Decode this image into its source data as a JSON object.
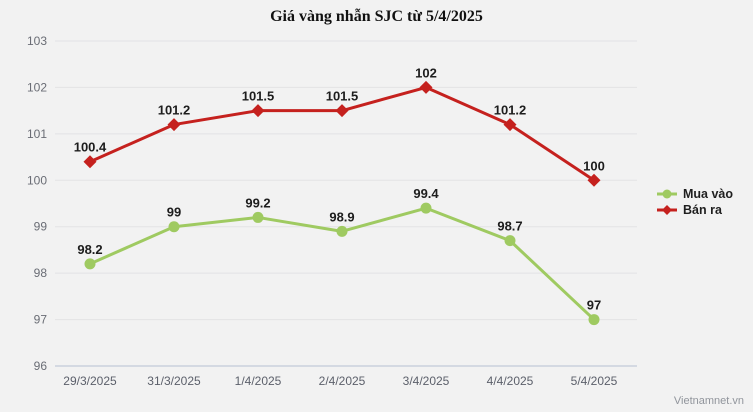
{
  "page": {
    "background": "#f2f2f2",
    "watermark": "Vietnamnet.vn"
  },
  "chart_data": {
    "type": "line",
    "title": "Giá vàng nhẫn SJC từ 5/4/2025",
    "categories": [
      "29/3/2025",
      "31/3/2025",
      "1/4/2025",
      "2/4/2025",
      "3/4/2025",
      "4/4/2025",
      "5/4/2025"
    ],
    "series": [
      {
        "name": "Mua vào",
        "color": "#9fca61",
        "marker": "circle",
        "values": [
          98.2,
          99,
          99.2,
          98.9,
          99.4,
          98.7,
          97
        ],
        "labels": [
          "98.2",
          "99",
          "99.2",
          "98.9",
          "99.4",
          "98.7",
          "97"
        ]
      },
      {
        "name": "Bán ra",
        "color": "#c5211e",
        "marker": "diamond",
        "values": [
          100.4,
          101.2,
          101.5,
          101.5,
          102,
          101.2,
          100
        ],
        "labels": [
          "100.4",
          "101.2",
          "101.5",
          "101.5",
          "102",
          "101.2",
          "100"
        ]
      }
    ],
    "xlabel": "",
    "ylabel": "",
    "ylim": [
      96,
      103
    ],
    "yticks": [
      96,
      97,
      98,
      99,
      100,
      101,
      102,
      103
    ],
    "grid": "horizontal",
    "grid_color": "#e3e3e5",
    "axis_line_color": "#b6c0d2",
    "legend_position": "right",
    "data_labels": true
  }
}
